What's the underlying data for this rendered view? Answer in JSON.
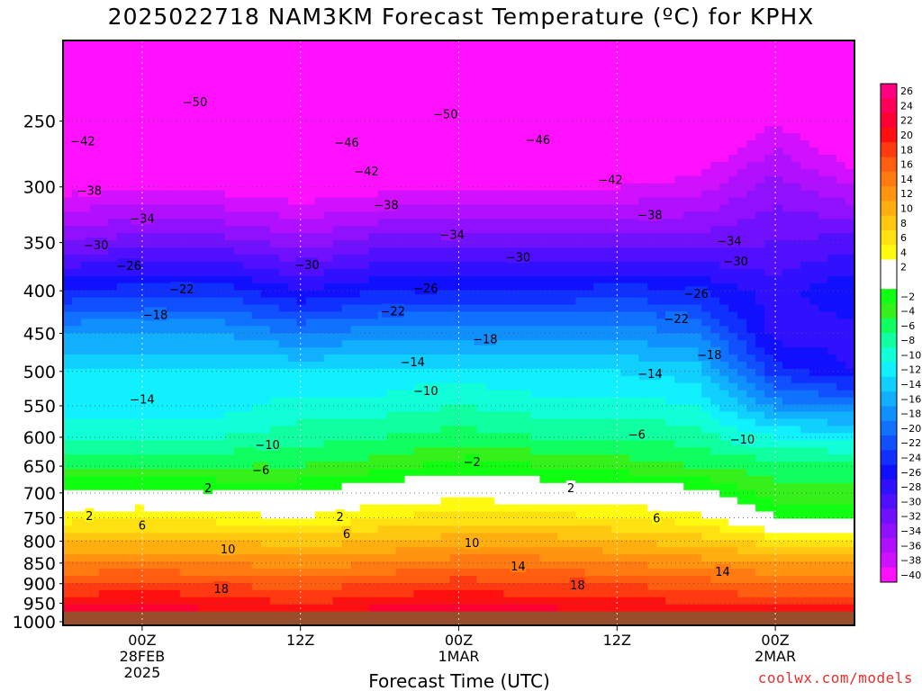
{
  "chart_data": {
    "type": "heatmap",
    "title": "2025022718 NAM3KM Forecast Temperature (ºC) for KPHX",
    "xlabel": "Forecast Time (UTC)",
    "ylabel": "",
    "x_ticks": [
      {
        "hour": 6,
        "lines": [
          "00Z",
          "28FEB",
          "2025"
        ]
      },
      {
        "hour": 18,
        "lines": [
          "12Z"
        ]
      },
      {
        "hour": 30,
        "lines": [
          "00Z",
          "1MAR"
        ]
      },
      {
        "hour": 42,
        "lines": [
          "12Z"
        ]
      },
      {
        "hour": 54,
        "lines": [
          "00Z",
          "2MAR"
        ]
      }
    ],
    "xlim": [
      0,
      60
    ],
    "y_ticks": [
      250,
      300,
      350,
      400,
      450,
      500,
      550,
      600,
      650,
      700,
      750,
      800,
      850,
      900,
      950,
      1000
    ],
    "ylim_pressure_hPa": [
      200,
      1010
    ],
    "y_scale": "log (pressure)",
    "ground_pressure_hPa": 972,
    "color_scale": [
      {
        "min": 24,
        "color": "#ff0080",
        "label": "26"
      },
      {
        "min": 22,
        "color": "#ff0058",
        "label": "24"
      },
      {
        "min": 20,
        "color": "#ff0034",
        "label": "22"
      },
      {
        "min": 18,
        "color": "#ff1010",
        "label": "20"
      },
      {
        "min": 16,
        "color": "#ff3a10",
        "label": "18"
      },
      {
        "min": 14,
        "color": "#ff5e10",
        "label": "16"
      },
      {
        "min": 12,
        "color": "#ff7a10",
        "label": "14"
      },
      {
        "min": 10,
        "color": "#ff9410",
        "label": "12"
      },
      {
        "min": 8,
        "color": "#ffae10",
        "label": "10"
      },
      {
        "min": 6,
        "color": "#ffc810",
        "label": "8"
      },
      {
        "min": 4,
        "color": "#ffe010",
        "label": "6"
      },
      {
        "min": 2,
        "color": "#fffa10",
        "label": "4"
      },
      {
        "min": 0,
        "color": "#ffffff",
        "label": "2"
      },
      {
        "min": -2,
        "color": "#ffffff",
        "label": ""
      },
      {
        "min": -4,
        "color": "#10ff10",
        "label": "−2"
      },
      {
        "min": -6,
        "color": "#36f01c",
        "label": "−4"
      },
      {
        "min": -8,
        "color": "#10ff60",
        "label": "−6"
      },
      {
        "min": -10,
        "color": "#10ffa0",
        "label": "−8"
      },
      {
        "min": -12,
        "color": "#10ffd8",
        "label": "−10"
      },
      {
        "min": -14,
        "color": "#10f0ff",
        "label": "−12"
      },
      {
        "min": -16,
        "color": "#10d0ff",
        "label": "−14"
      },
      {
        "min": -18,
        "color": "#10b0ff",
        "label": "−16"
      },
      {
        "min": -20,
        "color": "#1090ff",
        "label": "−18"
      },
      {
        "min": -22,
        "color": "#1070ff",
        "label": "−20"
      },
      {
        "min": -24,
        "color": "#1050ff",
        "label": "−22"
      },
      {
        "min": -26,
        "color": "#1030ff",
        "label": "−24"
      },
      {
        "min": -28,
        "color": "#1010ff",
        "label": "−26"
      },
      {
        "min": -30,
        "color": "#3010ff",
        "label": "−28"
      },
      {
        "min": -32,
        "color": "#5010ff",
        "label": "−30"
      },
      {
        "min": -34,
        "color": "#7010ff",
        "label": "−32"
      },
      {
        "min": -36,
        "color": "#9010ff",
        "label": "−34"
      },
      {
        "min": -38,
        "color": "#b010ff",
        "label": "−36"
      },
      {
        "min": -40,
        "color": "#d010ff",
        "label": "−38"
      },
      {
        "min": -999,
        "color": "#ff10ff",
        "label": "−40"
      }
    ],
    "ground_color": "#9a4d2a",
    "freezing_line_color": "#e6197a",
    "grid": true,
    "legend_position": "right",
    "temperature_profile": {
      "hours": [
        0,
        6,
        12,
        18,
        24,
        30,
        36,
        42,
        48,
        54,
        60
      ],
      "pressure": [
        250,
        300,
        350,
        400,
        450,
        500,
        550,
        600,
        650,
        700,
        750,
        800,
        850,
        900,
        950,
        972
      ],
      "values": [
        [
          -46,
          -41,
          -34,
          -26,
          -18,
          -14,
          -13,
          -10,
          -6,
          -1,
          3,
          8,
          12,
          16,
          19,
          21
        ],
        [
          -46,
          -40,
          -33,
          -25,
          -18,
          -14,
          -13,
          -10,
          -6,
          -1,
          4,
          8,
          12,
          17,
          20,
          22
        ],
        [
          -47,
          -41,
          -33,
          -25,
          -18,
          -14,
          -13,
          -10,
          -6,
          -2,
          3,
          8,
          12,
          16,
          19,
          20
        ],
        [
          -47,
          -42,
          -35,
          -28,
          -20,
          -14,
          -11,
          -9,
          -6,
          -2,
          2,
          7,
          11,
          15,
          18,
          20
        ],
        [
          -48,
          -41,
          -33,
          -26,
          -19,
          -14,
          -11,
          -8,
          -5,
          0,
          4,
          8,
          12,
          16,
          19,
          21
        ],
        [
          -49,
          -41,
          -33,
          -26,
          -19,
          -13,
          -10,
          -7,
          -3,
          1,
          5,
          9,
          13,
          17,
          20,
          22
        ],
        [
          -49,
          -41,
          -33,
          -26,
          -19,
          -14,
          -11,
          -8,
          -4,
          0,
          5,
          9,
          13,
          16,
          19,
          21
        ],
        [
          -47,
          -40,
          -33,
          -25,
          -19,
          -14,
          -11,
          -8,
          -5,
          0,
          4,
          8,
          12,
          16,
          19,
          20
        ],
        [
          -45,
          -39,
          -33,
          -26,
          -20,
          -15,
          -12,
          -9,
          -6,
          -1,
          3,
          7,
          11,
          15,
          18,
          20
        ],
        [
          -40,
          -35,
          -32,
          -29,
          -29,
          -25,
          -19,
          -12,
          -7,
          -5,
          -2,
          5,
          10,
          14,
          17,
          19
        ],
        [
          -45,
          -38,
          -31,
          -26,
          -29,
          -28,
          -20,
          -13,
          -7,
          -5,
          -2,
          5,
          10,
          14,
          17,
          19
        ]
      ]
    },
    "contour_labels": [
      {
        "text": "−50",
        "t": 10.0,
        "p": 237
      },
      {
        "text": "−50",
        "t": 29.0,
        "p": 245
      },
      {
        "text": "−46",
        "t": 36.0,
        "p": 263
      },
      {
        "text": "−46",
        "t": 21.5,
        "p": 265
      },
      {
        "text": "−42",
        "t": 1.5,
        "p": 264
      },
      {
        "text": "−42",
        "t": 23.0,
        "p": 287
      },
      {
        "text": "−42",
        "t": 41.5,
        "p": 294
      },
      {
        "text": "−38",
        "t": 2.0,
        "p": 303
      },
      {
        "text": "−38",
        "t": 24.5,
        "p": 315
      },
      {
        "text": "−38",
        "t": 44.5,
        "p": 324
      },
      {
        "text": "−34",
        "t": 6.0,
        "p": 327
      },
      {
        "text": "−34",
        "t": 29.5,
        "p": 342
      },
      {
        "text": "−34",
        "t": 50.5,
        "p": 348
      },
      {
        "text": "−30",
        "t": 2.5,
        "p": 352
      },
      {
        "text": "−30",
        "t": 18.5,
        "p": 372
      },
      {
        "text": "−30",
        "t": 34.5,
        "p": 364
      },
      {
        "text": "−30",
        "t": 51.0,
        "p": 368
      },
      {
        "text": "−26",
        "t": 5.0,
        "p": 373
      },
      {
        "text": "−26",
        "t": 27.5,
        "p": 397
      },
      {
        "text": "−26",
        "t": 48.0,
        "p": 403
      },
      {
        "text": "−22",
        "t": 9.0,
        "p": 398
      },
      {
        "text": "−22",
        "t": 25.0,
        "p": 423
      },
      {
        "text": "−22",
        "t": 46.5,
        "p": 432
      },
      {
        "text": "−18",
        "t": 7.0,
        "p": 427
      },
      {
        "text": "−18",
        "t": 32.0,
        "p": 457
      },
      {
        "text": "−18",
        "t": 49.0,
        "p": 477
      },
      {
        "text": "−14",
        "t": 26.5,
        "p": 487
      },
      {
        "text": "−14",
        "t": 44.5,
        "p": 503
      },
      {
        "text": "−14",
        "t": 6.0,
        "p": 540
      },
      {
        "text": "−10",
        "t": 27.5,
        "p": 527
      },
      {
        "text": "−10",
        "t": 15.5,
        "p": 612
      },
      {
        "text": "−10",
        "t": 51.5,
        "p": 603
      },
      {
        "text": "−6",
        "t": 43.5,
        "p": 595
      },
      {
        "text": "−6",
        "t": 15.0,
        "p": 656
      },
      {
        "text": "−2",
        "t": 31.0,
        "p": 642
      },
      {
        "text": "2",
        "t": 11.0,
        "p": 690
      },
      {
        "text": "2",
        "t": 38.5,
        "p": 690
      },
      {
        "text": "2",
        "t": 2.0,
        "p": 745
      },
      {
        "text": "2",
        "t": 21.0,
        "p": 747
      },
      {
        "text": "6",
        "t": 6.0,
        "p": 765
      },
      {
        "text": "6",
        "t": 21.5,
        "p": 783
      },
      {
        "text": "6",
        "t": 45.0,
        "p": 750
      },
      {
        "text": "10",
        "t": 12.5,
        "p": 817
      },
      {
        "text": "10",
        "t": 31.0,
        "p": 803
      },
      {
        "text": "14",
        "t": 34.5,
        "p": 857
      },
      {
        "text": "14",
        "t": 50.0,
        "p": 870
      },
      {
        "text": "18",
        "t": 12.0,
        "p": 912
      },
      {
        "text": "18",
        "t": 39.0,
        "p": 903
      }
    ]
  },
  "credit": "coolwx.com/models"
}
